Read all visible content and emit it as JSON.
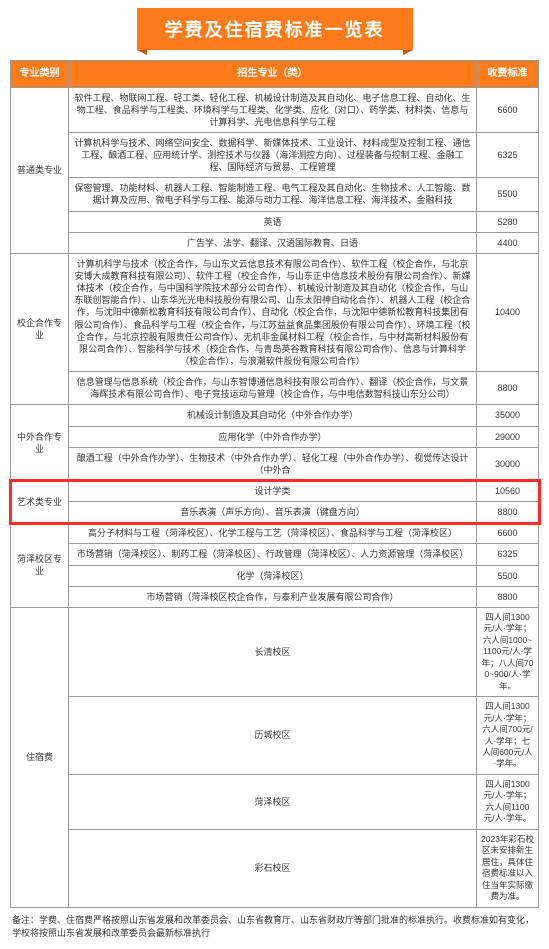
{
  "title": "学费及住宿费标准一览表",
  "headers": {
    "category": "专业类别",
    "major": "招生专业（类）",
    "fee": "收费标准"
  },
  "categories": [
    {
      "name": "普通类专业",
      "rows": [
        {
          "major": "软件工程、物联网工程、轻工类、轻化工程、机械设计制造及其自动化、电子信息工程、自动化、生物工程、食品科学与工程类、环境科学与工程类、化学类、应化（对口）、药学类、材料类、信息与计算科学、光电信息科学与工程",
          "fee": "6600"
        },
        {
          "major": "计算机科学与技术、网络空间安全、数据科学、新媒体技术、工业设计、材料成型及控制工程、通信工程、酿酒工程、应用统计学、测控技术与仪器（海洋测控方向）、过程装备与控制工程、金融工程、国际经济与贸易、工程管理",
          "fee": "6325"
        },
        {
          "major": "保密管理、功能材料、机器人工程、智能制造工程、电气工程及其自动化、生物技术、人工智能、数据计算及应用、微电子科学与工程、能源与动力工程、海洋信息工程、海洋技术、金融科技",
          "fee": "5500"
        },
        {
          "major": "英语",
          "fee": "5280"
        },
        {
          "major": "广告学、法学、翻译、汉语国际教育、日语",
          "fee": "4400"
        }
      ]
    },
    {
      "name": "校企合作专业",
      "rows": [
        {
          "major": "计算机科学与技术（校企合作，与山东文云信息技术有限公司合作）、软件工程（校企合作，与北京安博大成教育科技有限公司）、软件工程（校企合作，与山东正中信息技术股份有限公司合作）、新媒体技术（校企合作，与中国科学院技术部分公司合作）、机械设计制造及其自动化（校企合作，与山东联创智能合作）、山东华光光电科技股份有限公司、山东太阳神自动化合作）、机器人工程（校企合作，与沈阳中德新松教育科技有限公司合作）、自动化（校企合作，与沈阳中德新松教育科技集团有限公司合作）、食品科学与工程（校企合作，与江苏益益食品集团股份有限公司合作）、环境工程（校企合作，与北京控股有限责任公司合作）、无机非金属材料工程（校企合作，与中材高新材料股份有限公司合作）、智能科学与技术（校企合作，与青岛英谷教育科技有限公司合作）、信息与计算科学（校企合作），与浪潮软件股份有限公司合作）",
          "fee": "10400"
        },
        {
          "major": "信息管理与信息系统（校企合作，与山东智博通信息科技有限公司合作）、翻译（校企合作，与文景海辉技术有限公司合作）、电子竞技运动与管理（校企合作，与中电信数智科技山东分公司）",
          "fee": "8800"
        }
      ]
    },
    {
      "name": "中外合作专业",
      "rows": [
        {
          "major": "机械设计制造及其自动化（中外合作办学）",
          "fee": "35000"
        },
        {
          "major": "应用化学（中外合作办学）",
          "fee": "29000"
        },
        {
          "major": "酿酒工程（中外合作办学）、生物技术（中外合作办学）、轻化工程（中外合作办学）、视觉传达设计（中外合",
          "fee": "30000"
        }
      ]
    },
    {
      "name": "艺术类专业",
      "rows": [
        {
          "major": "设计学类",
          "fee": "10560"
        },
        {
          "major": "音乐表演（声乐方向）、音乐表演（键盘方向）",
          "fee": "8800"
        }
      ]
    },
    {
      "name": "菏泽校区专业",
      "rows": [
        {
          "major": "高分子材料与工程（菏泽校区）、化学工程与工艺（菏泽校区）、食品科学与工程（菏泽校区）",
          "fee": "6600"
        },
        {
          "major": "市场营销（菏泽校区）、制药工程（菏泽校区）、行政管理（菏泽校区）、人力资源管理（菏泽校区）",
          "fee": "6325"
        },
        {
          "major": "化学（菏泽校区）",
          "fee": "5500"
        },
        {
          "major": "市场营销（菏泽校区校企合作，与泰利产业发展有限公司合作）",
          "fee": "8800"
        }
      ]
    },
    {
      "name": "住宿费",
      "rows": [
        {
          "major": "长清校区",
          "fee": "四人间1300元/人·学年；六人间1000~1100元/人·学年；八人间700~900/人·学年。"
        },
        {
          "major": "历城校区",
          "fee": "四人间1300元/人·学年；六人间700元/人·学年；七人间600元/人·学年。"
        },
        {
          "major": "菏泽校区",
          "fee": "四人间1300元/人·学年；六人间1100元/人·学年。"
        },
        {
          "major": "彩石校区",
          "fee": "2023年彩石校区未安排新生居住，具体住宿费标准以入住当年实际缴费为准。"
        }
      ]
    }
  ],
  "note": "备注：学费、住宿费严格按照山东省发展和改革委员会、山东省教育厅、山东省财政厅等部门批准的标准执行。收费标准如有变化，学校将按照山东省发展和改革委员会最新标准执行"
}
